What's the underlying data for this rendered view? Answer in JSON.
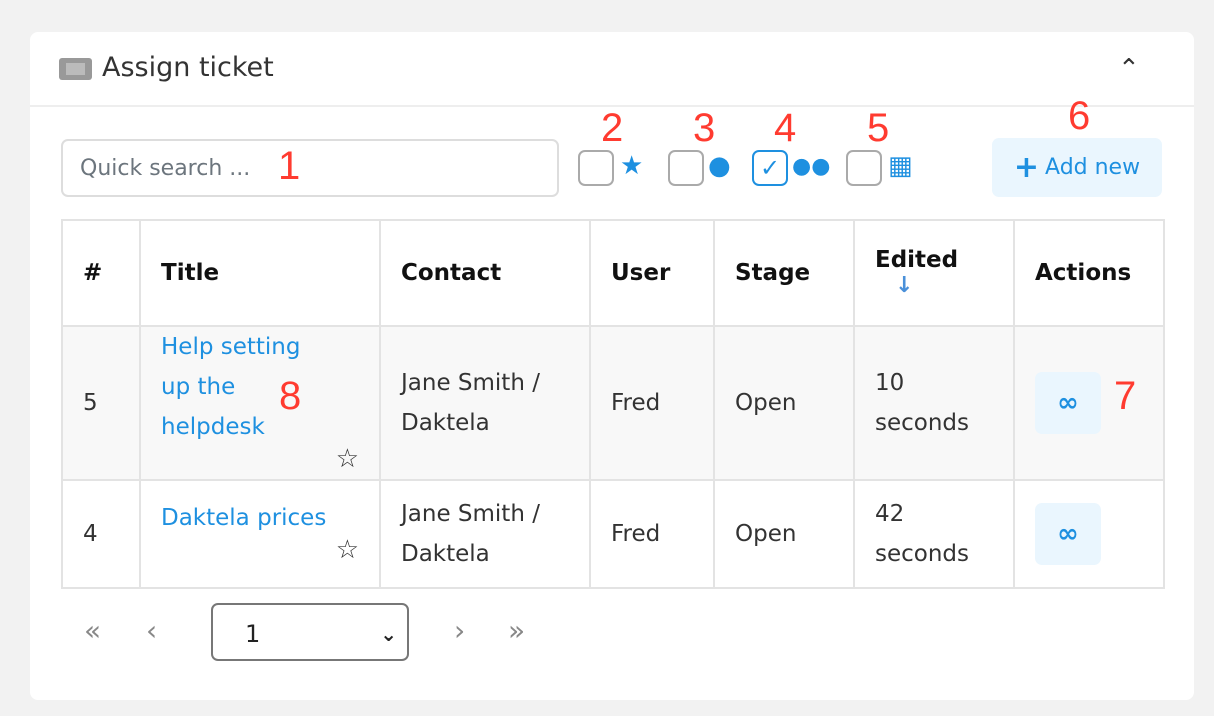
{
  "header": {
    "title": "Assign ticket",
    "ticket_icon": "ticket-icon",
    "collapse_icon": "chevron-up-icon"
  },
  "search": {
    "placeholder": "Quick search ...",
    "value": ""
  },
  "filters": [
    {
      "icon": "star-icon",
      "checked": false
    },
    {
      "icon": "user-icon",
      "checked": true,
      "_note": ""
    },
    {
      "icon": "users-icon",
      "checked": true
    },
    {
      "icon": "building-icon",
      "checked": false
    }
  ],
  "add_button": {
    "label": "Add new",
    "icon": "plus-icon"
  },
  "table": {
    "columns": [
      "#",
      "Title",
      "Contact",
      "User",
      "Stage",
      "Edited",
      "Actions"
    ],
    "sort": {
      "column": "Edited",
      "direction": "desc"
    },
    "rows": [
      {
        "id": "5",
        "title": "Help setting up the helpdesk",
        "contact": "Jane Smith / Daktela",
        "user": "Fred",
        "stage": "Open",
        "edited": "10 seconds"
      },
      {
        "id": "4",
        "title": "Daktela prices",
        "contact": "Jane Smith / Daktela",
        "user": "Fred",
        "stage": "Open",
        "edited": "42 seconds"
      }
    ]
  },
  "pagination": {
    "page": "1"
  },
  "annotations": [
    "1",
    "2",
    "3",
    "4",
    "5",
    "6",
    "7",
    "8"
  ],
  "colors": {
    "accent": "#1e90e0",
    "annotation": "#ff3b30",
    "button_bg": "#eaf6fe"
  }
}
